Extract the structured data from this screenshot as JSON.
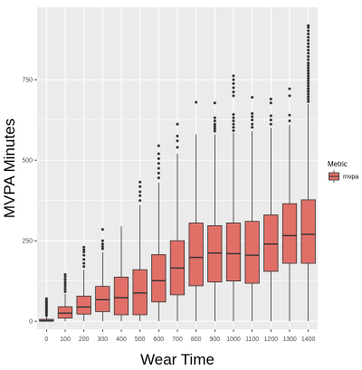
{
  "chart_data": {
    "type": "boxplot",
    "xlabel": "Wear Time",
    "ylabel": "MVPA Minutes",
    "categories": [
      "0",
      "100",
      "200",
      "300",
      "400",
      "500",
      "600",
      "700",
      "800",
      "900",
      "1000",
      "1100",
      "1200",
      "1300",
      "1400"
    ],
    "yticks": [
      0,
      250,
      500,
      750
    ],
    "ylim": [
      -25,
      975
    ],
    "grid": true,
    "legend": {
      "title": "Metric",
      "entries": [
        "mvpa"
      ],
      "position": "right"
    },
    "colors": {
      "box_fill": "#e06f67",
      "panel_bg": "#ebebeb",
      "grid": "#ffffff",
      "outline": "#333333"
    },
    "series": [
      {
        "name": "mvpa",
        "boxes": [
          {
            "x": "0",
            "min": 0,
            "q1": 0,
            "median": 2,
            "q3": 6,
            "max": 14,
            "outliers": [
              18,
              22,
              26,
              30,
              34,
              38,
              42,
              46,
              50,
              54,
              58,
              62,
              66,
              70
            ]
          },
          {
            "x": "100",
            "min": 0,
            "q1": 10,
            "median": 25,
            "q3": 45,
            "max": 85,
            "outliers": [
              92,
              100,
              108,
              115,
              122,
              130,
              138,
              145
            ]
          },
          {
            "x": "200",
            "min": 0,
            "q1": 22,
            "median": 44,
            "q3": 78,
            "max": 160,
            "outliers": [
              170,
              180,
              192,
              205,
              215,
              222,
              230
            ]
          },
          {
            "x": "300",
            "min": 0,
            "q1": 30,
            "median": 67,
            "q3": 108,
            "max": 215,
            "outliers": [
              225,
              232,
              240,
              250,
              285
            ]
          },
          {
            "x": "400",
            "min": 0,
            "q1": 20,
            "median": 73,
            "q3": 137,
            "max": 295,
            "outliers": []
          },
          {
            "x": "500",
            "min": 0,
            "q1": 20,
            "median": 88,
            "q3": 160,
            "max": 360,
            "outliers": [
              375,
              390,
              402,
              418,
              432
            ]
          },
          {
            "x": "600",
            "min": 0,
            "q1": 60,
            "median": 126,
            "q3": 207,
            "max": 430,
            "outliers": [
              445,
              460,
              475,
              490,
              505,
              520,
              545
            ]
          },
          {
            "x": "700",
            "min": 0,
            "q1": 82,
            "median": 165,
            "q3": 250,
            "max": 520,
            "outliers": [
              540,
              560,
              575,
              612
            ]
          },
          {
            "x": "800",
            "min": 0,
            "q1": 110,
            "median": 198,
            "q3": 305,
            "max": 580,
            "outliers": [
              680
            ]
          },
          {
            "x": "900",
            "min": 0,
            "q1": 122,
            "median": 212,
            "q3": 297,
            "max": 580,
            "outliers": [
              590,
              598,
              605,
              612,
              622,
              632,
              678
            ]
          },
          {
            "x": "1000",
            "min": 0,
            "q1": 125,
            "median": 210,
            "q3": 305,
            "max": 585,
            "outliers": [
              592,
              602,
              612,
              622,
              632,
              642,
              700,
              712,
              725,
              738,
              750,
              762
            ]
          },
          {
            "x": "1100",
            "min": 0,
            "q1": 118,
            "median": 205,
            "q3": 310,
            "max": 590,
            "outliers": [
              602,
              612,
              625,
              635,
              645,
              695
            ]
          },
          {
            "x": "1200",
            "min": 0,
            "q1": 155,
            "median": 240,
            "q3": 330,
            "max": 600,
            "outliers": [
              612,
              625,
              638,
              678,
              690
            ]
          },
          {
            "x": "1300",
            "min": 0,
            "q1": 180,
            "median": 266,
            "q3": 365,
            "max": 610,
            "outliers": [
              622,
              640,
              700,
              722
            ]
          },
          {
            "x": "1400",
            "min": 0,
            "q1": 180,
            "median": 270,
            "q3": 377,
            "max": 675,
            "outliers": [
              682,
              690,
              698,
              706,
              714,
              722,
              730,
              738,
              746,
              754,
              762,
              770,
              778,
              786,
              794,
              802,
              812,
              822,
              832,
              842,
              852,
              862,
              872,
              882,
              892,
              902,
              912,
              918
            ]
          }
        ]
      }
    ]
  }
}
